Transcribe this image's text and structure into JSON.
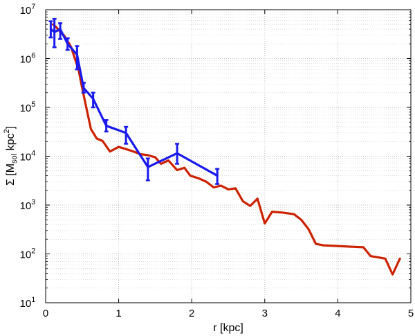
{
  "chart_data": {
    "type": "line",
    "xlabel": "r [kpc]",
    "ylabel": "Σ [M_sol kpc^2]",
    "ylabel_parts": {
      "main": "Σ [M",
      "sub": "sol",
      "mid": " kpc",
      "sup": "2",
      "end": "]"
    },
    "x_scale": "linear",
    "y_scale": "log",
    "xlim": [
      0,
      5
    ],
    "ylim": [
      10,
      10000000
    ],
    "grid": true,
    "x_ticks": [
      0,
      1,
      2,
      3,
      4,
      5
    ],
    "x_tick_labels": [
      "0",
      "1",
      "2",
      "3",
      "4",
      "5"
    ],
    "y_ticks": [
      10,
      100,
      1000,
      10000,
      100000,
      1000000,
      10000000
    ],
    "y_tick_labels": [
      {
        "base": "10",
        "exp": "1"
      },
      {
        "base": "10",
        "exp": "2"
      },
      {
        "base": "10",
        "exp": "3"
      },
      {
        "base": "10",
        "exp": "4"
      },
      {
        "base": "10",
        "exp": "5"
      },
      {
        "base": "10",
        "exp": "6"
      },
      {
        "base": "10",
        "exp": "7"
      }
    ],
    "series": [
      {
        "color": "#cc2200",
        "points": [
          [
            0.1,
            5000000
          ],
          [
            0.15,
            4300000
          ],
          [
            0.2,
            3500000
          ],
          [
            0.25,
            3000000
          ],
          [
            0.3,
            2300000
          ],
          [
            0.35,
            1700000
          ],
          [
            0.4,
            1000000
          ],
          [
            0.45,
            600000
          ],
          [
            0.5,
            250000
          ],
          [
            0.55,
            110000
          ],
          [
            0.62,
            36000
          ],
          [
            0.7,
            23000
          ],
          [
            0.78,
            20500
          ],
          [
            0.88,
            12500
          ],
          [
            1.0,
            15500
          ],
          [
            1.1,
            14000
          ],
          [
            1.2,
            12500
          ],
          [
            1.3,
            11000
          ],
          [
            1.4,
            10500
          ],
          [
            1.5,
            9500
          ],
          [
            1.58,
            7000
          ],
          [
            1.68,
            8200
          ],
          [
            1.8,
            5200
          ],
          [
            1.9,
            5800
          ],
          [
            1.98,
            4000
          ],
          [
            2.1,
            3500
          ],
          [
            2.2,
            3000
          ],
          [
            2.3,
            2300
          ],
          [
            2.4,
            2500
          ],
          [
            2.5,
            2100
          ],
          [
            2.6,
            2200
          ],
          [
            2.7,
            1200
          ],
          [
            2.8,
            960
          ],
          [
            2.9,
            1350
          ],
          [
            3.0,
            420
          ],
          [
            3.1,
            730
          ],
          [
            3.25,
            700
          ],
          [
            3.4,
            650
          ],
          [
            3.5,
            500
          ],
          [
            3.6,
            320
          ],
          [
            3.7,
            160
          ],
          [
            3.8,
            150
          ],
          [
            4.0,
            145
          ],
          [
            4.2,
            140
          ],
          [
            4.35,
            137
          ],
          [
            4.45,
            90
          ],
          [
            4.55,
            85
          ],
          [
            4.65,
            80
          ],
          [
            4.75,
            38
          ],
          [
            4.85,
            80
          ]
        ]
      },
      {
        "color": "#1a1aee",
        "points": [
          [
            0.07,
            4000000
          ],
          [
            0.12,
            3500000
          ],
          [
            0.2,
            4000000
          ],
          [
            0.3,
            2000000
          ],
          [
            0.43,
            1200000
          ],
          [
            0.52,
            250000
          ],
          [
            0.65,
            150000
          ],
          [
            0.83,
            42000
          ],
          [
            1.1,
            30000
          ],
          [
            1.4,
            6000
          ],
          [
            1.8,
            11500
          ],
          [
            2.35,
            4000
          ]
        ],
        "error_low": [
          2700000,
          1700000,
          2500000,
          1500000,
          600000,
          200000,
          100000,
          32000,
          18000,
          3200,
          7000,
          2700
        ],
        "error_high": [
          5800000,
          6500000,
          5300000,
          2600000,
          1800000,
          320000,
          200000,
          55000,
          40000,
          9000,
          18000,
          5500
        ]
      }
    ]
  }
}
